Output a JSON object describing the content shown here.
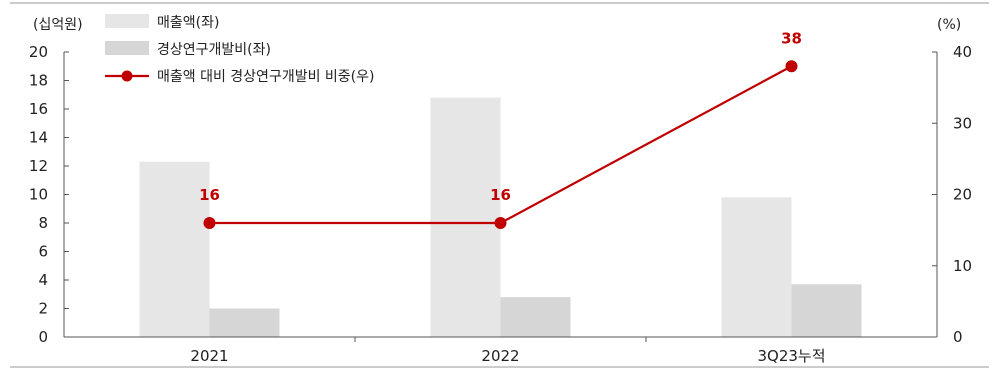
{
  "chart_data": {
    "type": "bar",
    "categories": [
      "2021",
      "2022",
      "3Q23누적"
    ],
    "series": [
      {
        "name": "매출액(좌)",
        "type": "bar",
        "axis": "left",
        "color": "#e6e6e6",
        "values": [
          12.3,
          16.8,
          9.8
        ]
      },
      {
        "name": "경상연구개발비(좌)",
        "type": "bar",
        "axis": "left",
        "color": "#d6d6d6",
        "values": [
          2.0,
          2.8,
          3.7
        ]
      },
      {
        "name": "매출액 대비 경상연구개발비 비중(우)",
        "type": "line",
        "axis": "right",
        "color": "#c00000",
        "values": [
          16,
          16,
          38
        ],
        "labels": [
          "16",
          "16",
          "38"
        ]
      }
    ],
    "y_left": {
      "unit": "(십억원)",
      "min": 0,
      "max": 20,
      "ticks": [
        "0",
        "2",
        "4",
        "6",
        "8",
        "10",
        "12",
        "14",
        "16",
        "18",
        "20"
      ]
    },
    "y_right": {
      "unit": "(%)",
      "min": 0,
      "max": 40,
      "ticks": [
        "0",
        "10",
        "20",
        "30",
        "40"
      ]
    },
    "grid": false,
    "legend_position": "top-left"
  }
}
